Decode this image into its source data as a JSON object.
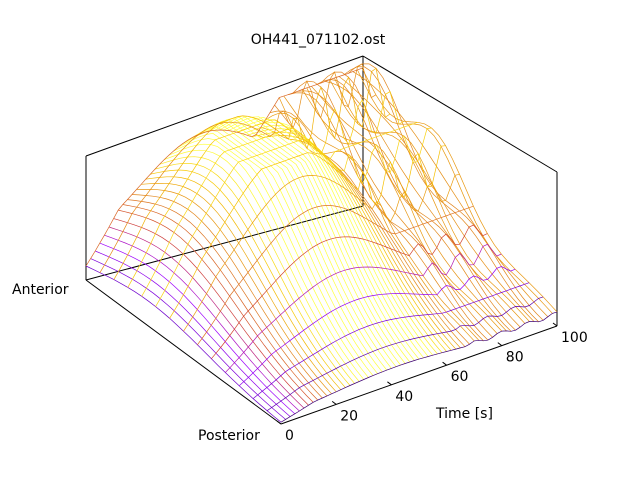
{
  "chart_data": {
    "type": "surface",
    "title": "OH441_071102.ost",
    "xlabel": "Time [s]",
    "ylabel_anterior": "Anterior",
    "ylabel_posterior": "Posterior",
    "xlim": [
      0,
      100
    ],
    "x_ticks": [
      "0",
      "20",
      "40",
      "60",
      "80",
      "100"
    ],
    "colormap": [
      "#000000",
      "#6a00c8",
      "#a000ff",
      "#d04030",
      "#e08020",
      "#f5c000",
      "#ffff40"
    ],
    "surface_shape": "ridge rising toward mid-anterior, with higher jagged peaks after ~60 s near the anterior side",
    "peak_time_s": 40,
    "grid": false
  }
}
